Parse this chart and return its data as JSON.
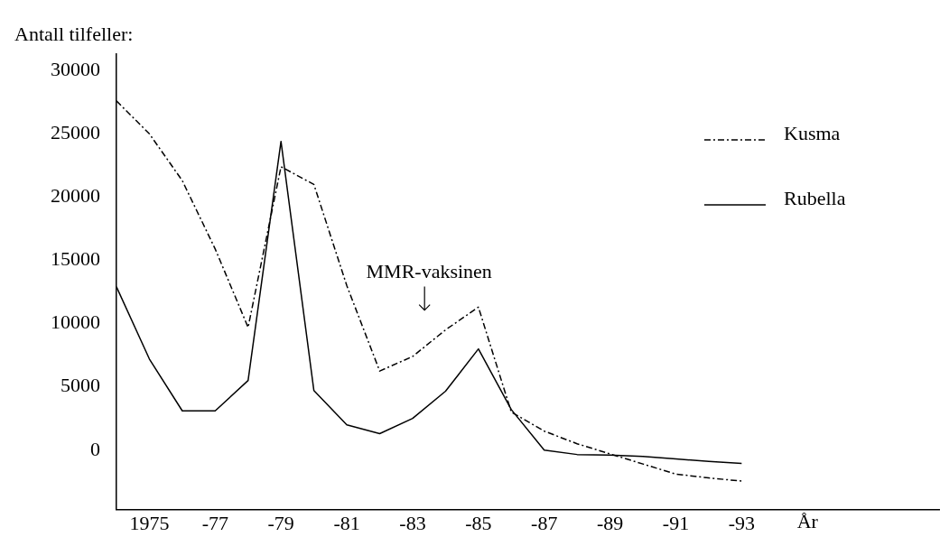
{
  "chart_data": {
    "type": "line",
    "ylabel": "Antall tilfeller:",
    "xlabel": "År",
    "categories": [
      null,
      "1975",
      null,
      "-77",
      null,
      "-79",
      null,
      "-81",
      null,
      "-83",
      null,
      "-85",
      null,
      "-87",
      null,
      "-89",
      null,
      "-91",
      null,
      "-93",
      null,
      null,
      null,
      null,
      null,
      null
    ],
    "ylim": [
      -4700,
      31300
    ],
    "yticks": [
      0,
      5000,
      10000,
      15000,
      20000,
      25000,
      30000
    ],
    "grid": false,
    "legend": "top right",
    "marker": "none",
    "series": [
      {
        "name": "Kusma",
        "color": "#000000",
        "line_style": "dashed",
        "values": [
          27600,
          25000,
          21300,
          15900,
          9700,
          22400,
          21000,
          13000,
          6250,
          7400,
          9500,
          11300,
          3000,
          1500,
          500,
          -300,
          -1100,
          -1900,
          -2200,
          -2450,
          null,
          null,
          null,
          null,
          null,
          null
        ]
      },
      {
        "name": "Rubella",
        "color": "#000000",
        "line_style": "solid",
        "values": [
          12900,
          7200,
          3100,
          3100,
          5500,
          24400,
          4700,
          2000,
          1300,
          2500,
          4650,
          8000,
          3200,
          0,
          -350,
          -400,
          -500,
          -700,
          -900,
          -1050,
          null,
          null,
          null,
          null,
          null,
          null
        ]
      }
    ],
    "annotations": [
      "MMR-vaksinen"
    ]
  }
}
